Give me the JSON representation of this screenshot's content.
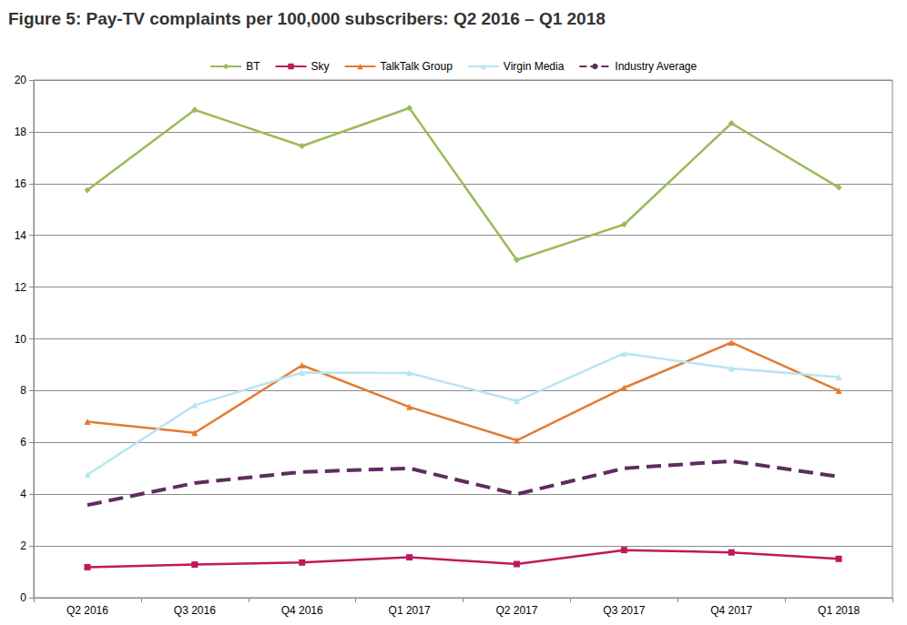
{
  "chart_data": {
    "type": "line",
    "title": "Figure 5: Pay-TV complaints per 100,000 subscribers: Q2 2016 – Q1 2018",
    "categories": [
      "Q2 2016",
      "Q3 2016",
      "Q4 2016",
      "Q1 2017",
      "Q2 2017",
      "Q3 2017",
      "Q4 2017",
      "Q1 2018"
    ],
    "series": [
      {
        "name": "BT",
        "color": "#9BBB59",
        "marker": "diamond",
        "line_style": "solid",
        "values": [
          15.75,
          18.85,
          17.45,
          18.92,
          13.05,
          14.42,
          18.33,
          15.85
        ]
      },
      {
        "name": "Sky",
        "color": "#C0185C",
        "marker": "square",
        "line_style": "solid",
        "values": [
          1.18,
          1.28,
          1.36,
          1.56,
          1.3,
          1.84,
          1.75,
          1.5
        ]
      },
      {
        "name": "TalkTalk Group",
        "color": "#E47B32",
        "marker": "triangle",
        "line_style": "solid",
        "values": [
          6.8,
          6.37,
          8.98,
          7.37,
          6.08,
          8.11,
          9.86,
          8.0
        ]
      },
      {
        "name": "Virgin Media",
        "color": "#B9E5F2",
        "marker": "triangle",
        "line_style": "solid",
        "values": [
          4.75,
          7.44,
          8.7,
          8.68,
          7.6,
          9.44,
          8.86,
          8.52
        ]
      },
      {
        "name": "Industry Average",
        "color": "#5E2D5F",
        "marker": "none",
        "line_style": "dashed",
        "values": [
          3.58,
          4.43,
          4.86,
          5.0,
          4.0,
          5.0,
          5.28,
          4.68
        ]
      }
    ],
    "ylim": [
      0,
      20
    ],
    "yticks": [
      0,
      2,
      4,
      6,
      8,
      10,
      12,
      14,
      16,
      18,
      20
    ],
    "grid": true,
    "legend": "top"
  }
}
